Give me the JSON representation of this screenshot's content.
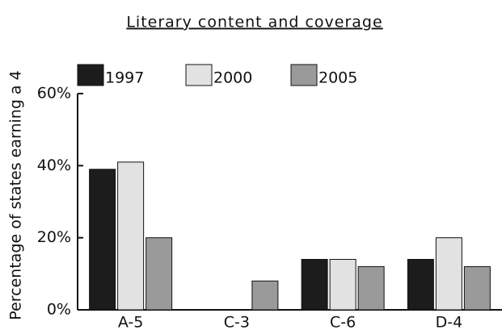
{
  "chart_data": {
    "type": "bar",
    "title": "Literary content and coverage",
    "y_label": "Percentage of states earning a 4",
    "categories": [
      "A-5",
      "C-3",
      "C-6",
      "D-4"
    ],
    "series": [
      {
        "name": "1997",
        "color": "#1c1c1c",
        "values": [
          39,
          0,
          14,
          14
        ]
      },
      {
        "name": "2000",
        "color": "#e2e2e2",
        "values": [
          41,
          0,
          14,
          20
        ]
      },
      {
        "name": "2005",
        "color": "#9a9a9a",
        "values": [
          20,
          8,
          12,
          12
        ]
      }
    ],
    "ylim": [
      0,
      60
    ],
    "yticks": [
      {
        "value": 0,
        "label": "0%"
      },
      {
        "value": 20,
        "label": "20%"
      },
      {
        "value": 40,
        "label": "40%"
      },
      {
        "value": 60,
        "label": "60%"
      }
    ],
    "legend": "top"
  }
}
